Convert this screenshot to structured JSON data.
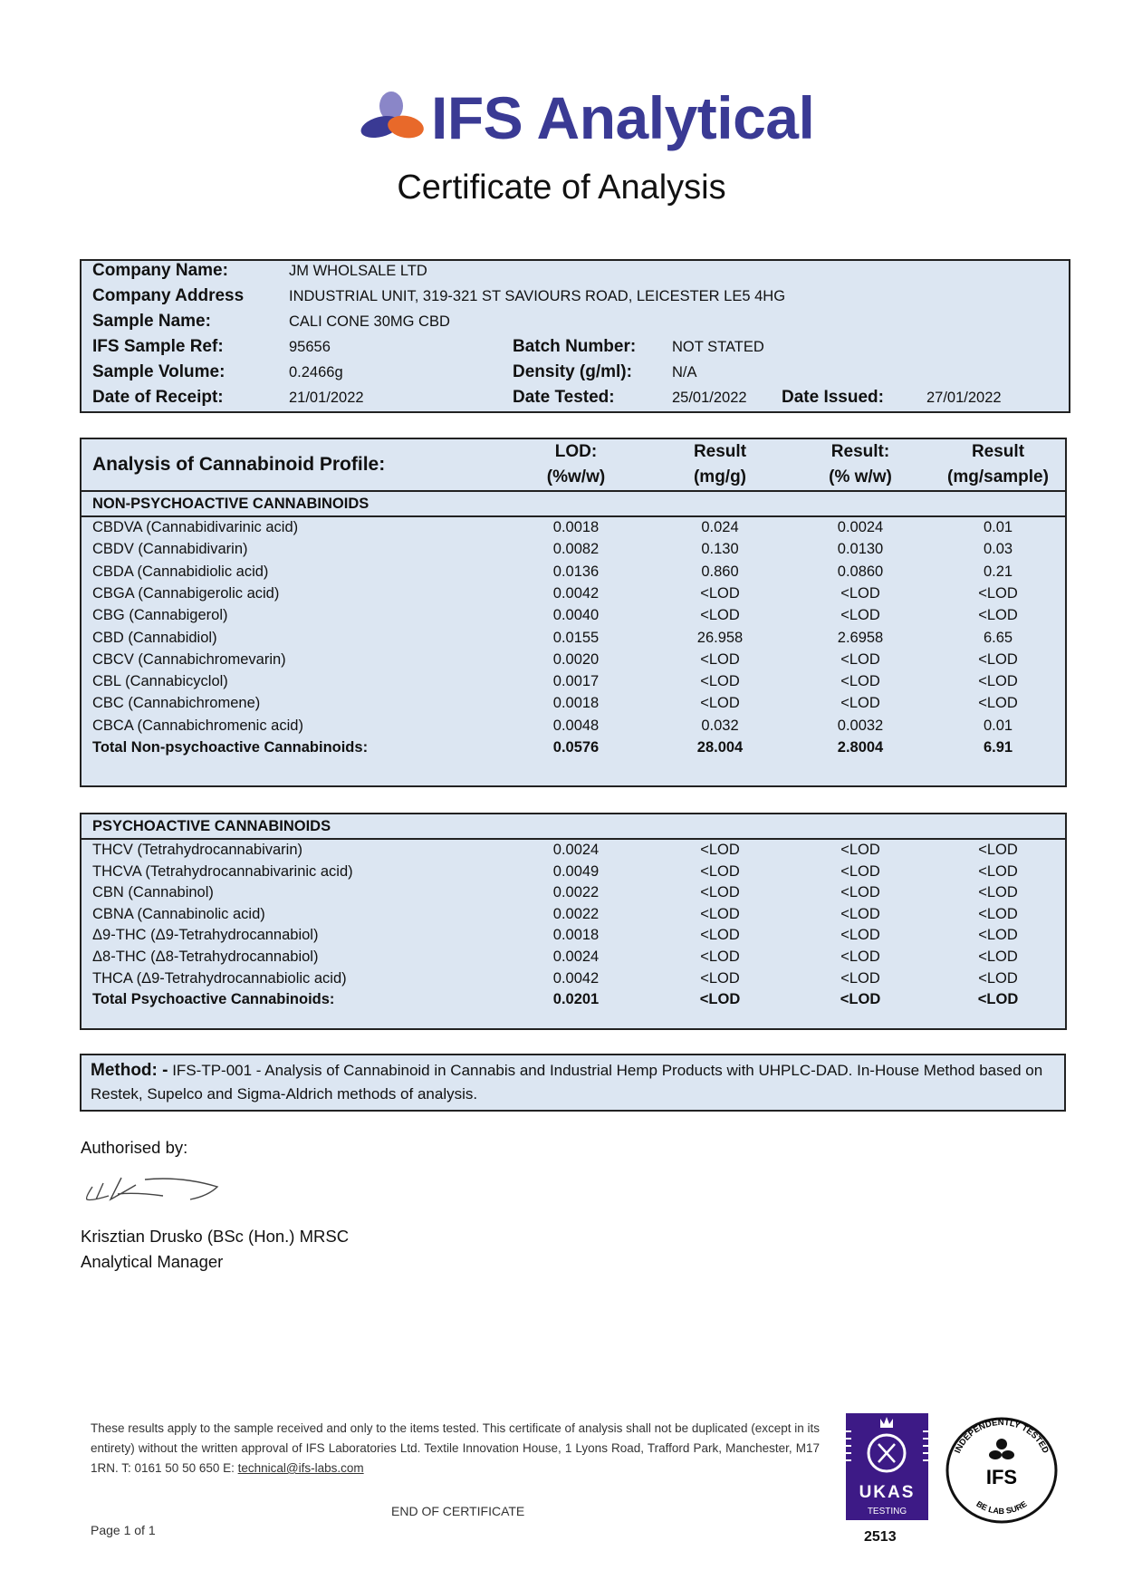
{
  "header": {
    "brand": "IFS Analytical",
    "title": "Certificate of Analysis",
    "brand_colors": {
      "primary": "#3a3a94",
      "accent": "#e8692a",
      "light": "#8a86c8"
    }
  },
  "info": {
    "company_name_label": "Company Name:",
    "company_name": "JM WHOLSALE LTD",
    "company_address_label": "Company Address",
    "company_address": "INDUSTRIAL UNIT, 319-321 ST SAVIOURS ROAD, LEICESTER LE5 4HG",
    "sample_name_label": "Sample Name:",
    "sample_name": "CALI CONE 30MG CBD",
    "sample_ref_label": "IFS Sample Ref:",
    "sample_ref": "95656",
    "batch_label": "Batch Number:",
    "batch": "NOT STATED",
    "volume_label": "Sample Volume:",
    "volume": "0.2466g",
    "density_label": "Density (g/ml):",
    "density": "N/A",
    "receipt_label": "Date of Receipt:",
    "receipt": "21/01/2022",
    "tested_label": "Date Tested:",
    "tested": "25/01/2022",
    "issued_label": "Date Issued:",
    "issued": "27/01/2022"
  },
  "analysis": {
    "title": "Analysis of Cannabinoid Profile:",
    "columns": [
      {
        "line1": "LOD:",
        "line2": "(%w/w)"
      },
      {
        "line1": "Result",
        "line2": "(mg/g)"
      },
      {
        "line1": "Result:",
        "line2": "(% w/w)"
      },
      {
        "line1": "Result",
        "line2": "(mg/sample)"
      }
    ],
    "non_psychoactive": {
      "heading": "NON-PSYCHOACTIVE CANNABINOIDS",
      "rows": [
        [
          "CBDVA (Cannabidivarinic acid)",
          "0.0018",
          "0.024",
          "0.0024",
          "0.01"
        ],
        [
          "CBDV (Cannabidivarin)",
          "0.0082",
          "0.130",
          "0.0130",
          "0.03"
        ],
        [
          "CBDA (Cannabidiolic acid)",
          "0.0136",
          "0.860",
          "0.0860",
          "0.21"
        ],
        [
          "CBGA (Cannabigerolic acid)",
          "0.0042",
          "<LOD",
          "<LOD",
          "<LOD"
        ],
        [
          "CBG (Cannabigerol)",
          "0.0040",
          "<LOD",
          "<LOD",
          "<LOD"
        ],
        [
          "CBD (Cannabidiol)",
          "0.0155",
          "26.958",
          "2.6958",
          "6.65"
        ],
        [
          "CBCV (Cannabichromevarin)",
          "0.0020",
          "<LOD",
          "<LOD",
          "<LOD"
        ],
        [
          "CBL (Cannabicyclol)",
          "0.0017",
          "<LOD",
          "<LOD",
          "<LOD"
        ],
        [
          "CBC (Cannabichromene)",
          "0.0018",
          "<LOD",
          "<LOD",
          "<LOD"
        ],
        [
          "CBCA (Cannabichromenic acid)",
          "0.0048",
          "0.032",
          "0.0032",
          "0.01"
        ]
      ],
      "total": [
        "Total Non-psychoactive Cannabinoids:",
        "0.0576",
        "28.004",
        "2.8004",
        "6.91"
      ]
    },
    "psychoactive": {
      "heading": "PSYCHOACTIVE CANNABINOIDS",
      "rows": [
        [
          "THCV (Tetrahydrocannabivarin)",
          "0.0024",
          "<LOD",
          "<LOD",
          "<LOD"
        ],
        [
          "THCVA (Tetrahydrocannabivarinic acid)",
          "0.0049",
          "<LOD",
          "<LOD",
          "<LOD"
        ],
        [
          "CBN (Cannabinol)",
          "0.0022",
          "<LOD",
          "<LOD",
          "<LOD"
        ],
        [
          "CBNA (Cannabinolic acid)",
          "0.0022",
          "<LOD",
          "<LOD",
          "<LOD"
        ],
        [
          "Δ9-THC (Δ9-Tetrahydrocannabiol)",
          "0.0018",
          "<LOD",
          "<LOD",
          "<LOD"
        ],
        [
          "Δ8-THC (Δ8-Tetrahydrocannabiol)",
          "0.0024",
          "<LOD",
          "<LOD",
          "<LOD"
        ],
        [
          "THCA (Δ9-Tetrahydrocannabiolic acid)",
          "0.0042",
          "<LOD",
          "<LOD",
          "<LOD"
        ]
      ],
      "total": [
        "Total Psychoactive Cannabinoids:",
        "0.0201",
        "<LOD",
        "<LOD",
        "<LOD"
      ]
    }
  },
  "method": {
    "label": "Method: -",
    "text": " IFS-TP-001 - Analysis of Cannabinoid in Cannabis and Industrial Hemp Products with UHPLC-DAD. In-House Method based on Restek, Supelco and Sigma-Aldrich methods of analysis."
  },
  "authorisation": {
    "label": "Authorised by:",
    "name": "Krisztian Drusko (BSc (Hon.) MRSC",
    "role": "Analytical Manager"
  },
  "footer": {
    "disclaimer": "These results apply to the sample received and only to the items tested. This certificate of analysis shall not be duplicated (except in its entirety) without the written approval of IFS Laboratories Ltd. Textile Innovation House, 1 Lyons Road, Trafford Park, Manchester, M17 1RN. T: 0161 50 50 650 E: ",
    "email": "technical@ifs-labs.com",
    "end": "END OF CERTIFICATE",
    "page": "Page 1 of 1",
    "ukas_text": "UKAS",
    "ukas_sub": "TESTING",
    "ukas_number": "2513",
    "seal_top": "INDEPENDENTLY TESTED",
    "seal_center": "IFS",
    "seal_bottom": "BE LAB SURE"
  }
}
